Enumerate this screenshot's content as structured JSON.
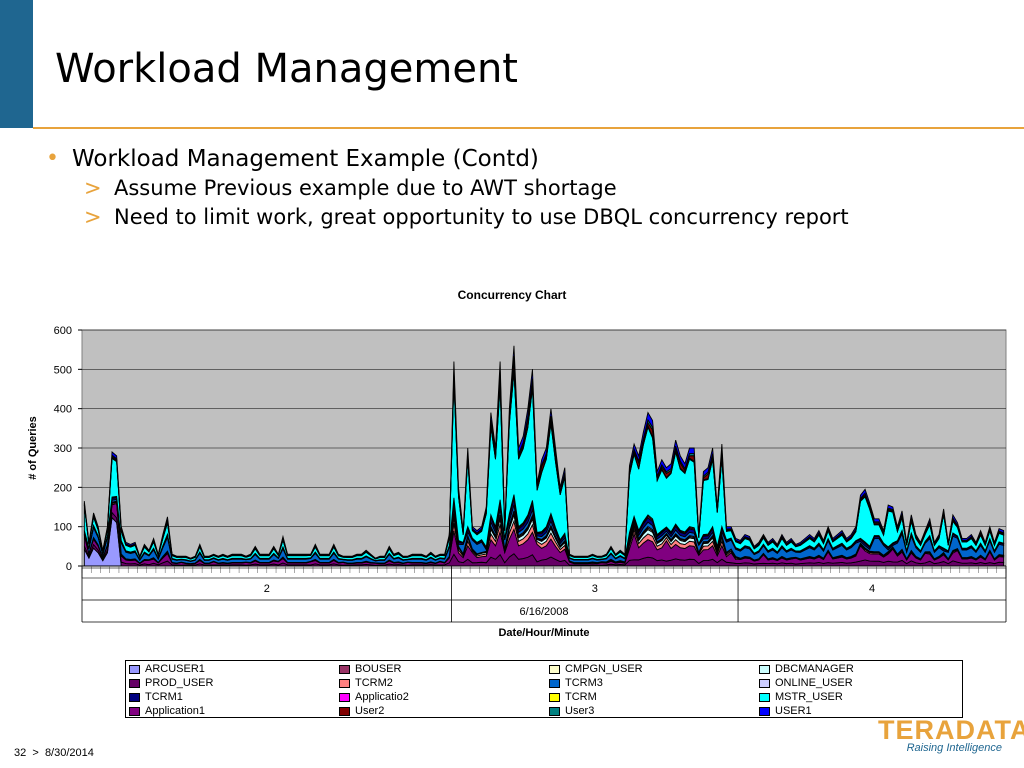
{
  "slide": {
    "title": "Workload Management",
    "bullet1": "Workload Management Example (Contd)",
    "sub_marker": ">",
    "sub1": "Assume Previous example due to AWT shortage",
    "sub2": "Need to limit work, great opportunity to use DBQL concurrency report",
    "footer_page": "32",
    "footer_sep": ">",
    "footer_date": "8/30/2014",
    "logo_text": "TERADATA",
    "logo_tagline": "Raising Intelligence",
    "colors": {
      "accent": "#e8a33c",
      "brand_blue": "#1f6690"
    }
  },
  "chart_data": {
    "type": "area",
    "stacked": true,
    "title": "Concurrency Chart",
    "xlabel": "Date/Hour/Minute",
    "ylabel": "# of Queries",
    "ylim": [
      0,
      600
    ],
    "yticks": [
      0,
      100,
      200,
      300,
      400,
      500,
      600
    ],
    "x_groups": [
      {
        "date": "6/16/2008",
        "hours": [
          "2",
          "3",
          "4"
        ]
      }
    ],
    "grid": true,
    "background": "#c0c0c0",
    "legend_position": "bottom",
    "series": [
      {
        "name": "ARCUSER1",
        "color": "#9999ff"
      },
      {
        "name": "BOUSER",
        "color": "#993366"
      },
      {
        "name": "CMPGN_USER",
        "color": "#ffffcc"
      },
      {
        "name": "DBCMANAGER",
        "color": "#ccffff"
      },
      {
        "name": "PROD_USER",
        "color": "#660066"
      },
      {
        "name": "TCRM2",
        "color": "#ff8080"
      },
      {
        "name": "TCRM3",
        "color": "#0066cc"
      },
      {
        "name": "ONLINE_USER",
        "color": "#ccccff"
      },
      {
        "name": "TCRM1",
        "color": "#000080"
      },
      {
        "name": "Applicatio2",
        "color": "#ff00ff"
      },
      {
        "name": "TCRM",
        "color": "#ffff00"
      },
      {
        "name": "MSTR_USER",
        "color": "#00ffff"
      },
      {
        "name": "Application1",
        "color": "#800080"
      },
      {
        "name": "User2",
        "color": "#800000"
      },
      {
        "name": "User3",
        "color": "#008080"
      },
      {
        "name": "USER1",
        "color": "#0000ff"
      }
    ],
    "totals_hour_2": [
      165,
      60,
      135,
      100,
      40,
      100,
      290,
      280,
      100,
      60,
      55,
      60,
      25,
      55,
      40,
      70,
      30,
      80,
      125,
      30,
      25,
      25,
      25,
      20,
      25,
      55,
      25,
      25,
      30,
      25,
      30,
      25,
      30,
      30,
      30,
      25,
      30,
      50,
      30,
      30,
      30,
      50,
      30,
      75,
      30,
      30,
      30,
      30,
      30,
      30,
      55,
      30,
      30,
      30,
      55,
      30,
      25,
      25,
      25,
      30,
      30,
      40,
      30,
      20,
      25,
      25,
      50,
      30,
      35,
      25,
      25,
      30,
      30,
      30,
      25,
      35,
      25,
      30,
      30,
      80
    ],
    "totals_hour_3": [
      520,
      200,
      90,
      300,
      100,
      90,
      100,
      150,
      390,
      300,
      520,
      100,
      400,
      560,
      300,
      330,
      400,
      500,
      210,
      270,
      300,
      400,
      300,
      200,
      250,
      30,
      25,
      25,
      25,
      25,
      30,
      25,
      25,
      30,
      50,
      30,
      40,
      30,
      255,
      310,
      280,
      340,
      390,
      370,
      240,
      270,
      250,
      260,
      320,
      280,
      260,
      300,
      300,
      80,
      240,
      250,
      300,
      150,
      310,
      100,
      100,
      70
    ],
    "totals_hour_4": [
      65,
      80,
      75,
      50,
      60,
      80,
      60,
      70,
      55,
      80,
      60,
      70,
      55,
      60,
      70,
      80,
      70,
      90,
      65,
      100,
      70,
      80,
      90,
      70,
      80,
      100,
      180,
      195,
      160,
      120,
      120,
      90,
      155,
      150,
      100,
      140,
      60,
      130,
      80,
      60,
      90,
      120,
      60,
      80,
      145,
      60,
      130,
      110,
      70,
      70,
      80,
      60,
      90,
      60,
      100,
      60,
      95,
      90
    ]
  }
}
